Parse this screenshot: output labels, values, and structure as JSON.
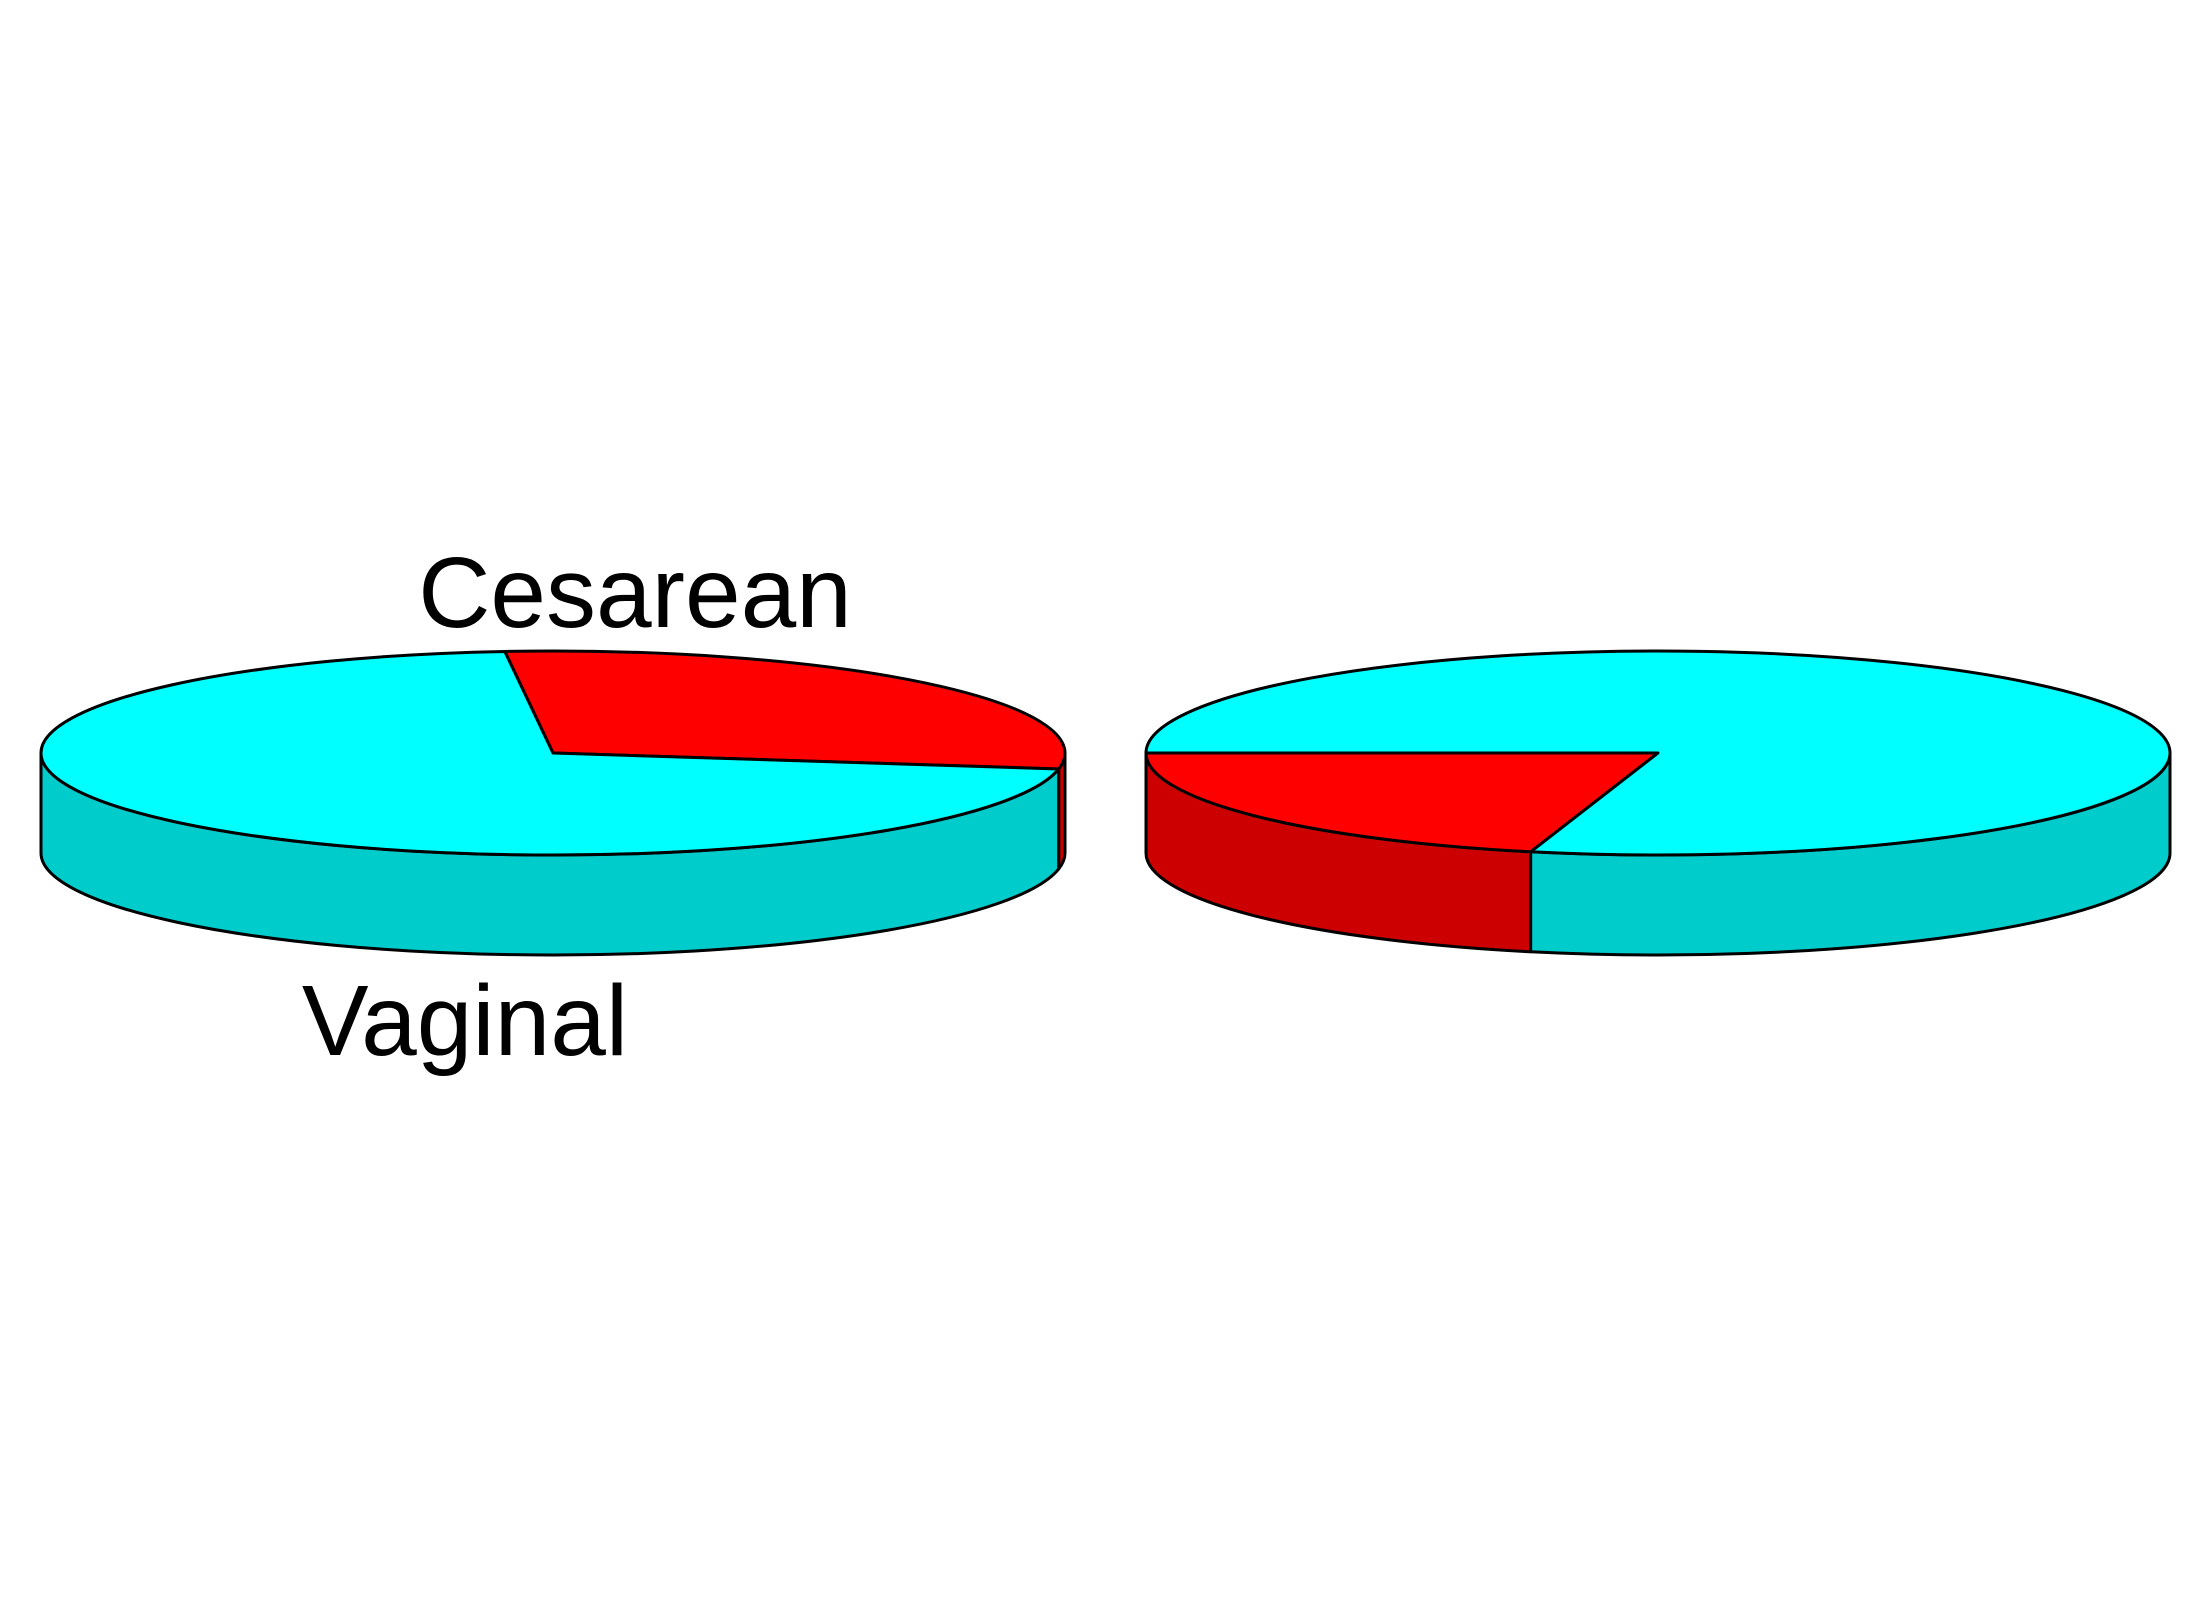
{
  "chart_data": [
    {
      "type": "pie",
      "style": "3d",
      "slices": [
        {
          "label": "Cesarean",
          "value": 29,
          "color": "#FF0000",
          "side_color": "#CC0000"
        },
        {
          "label": "Vaginal",
          "value": 71,
          "color": "#00FFFF",
          "side_color": "#00CCCC"
        }
      ],
      "show_labels": true
    },
    {
      "type": "pie",
      "style": "3d",
      "slices": [
        {
          "label": "",
          "value": 21,
          "color": "#FF0000",
          "side_color": "#CC0000"
        },
        {
          "label": "",
          "value": 79,
          "color": "#00FFFF",
          "side_color": "#00CCCC"
        }
      ],
      "show_labels": false
    }
  ]
}
